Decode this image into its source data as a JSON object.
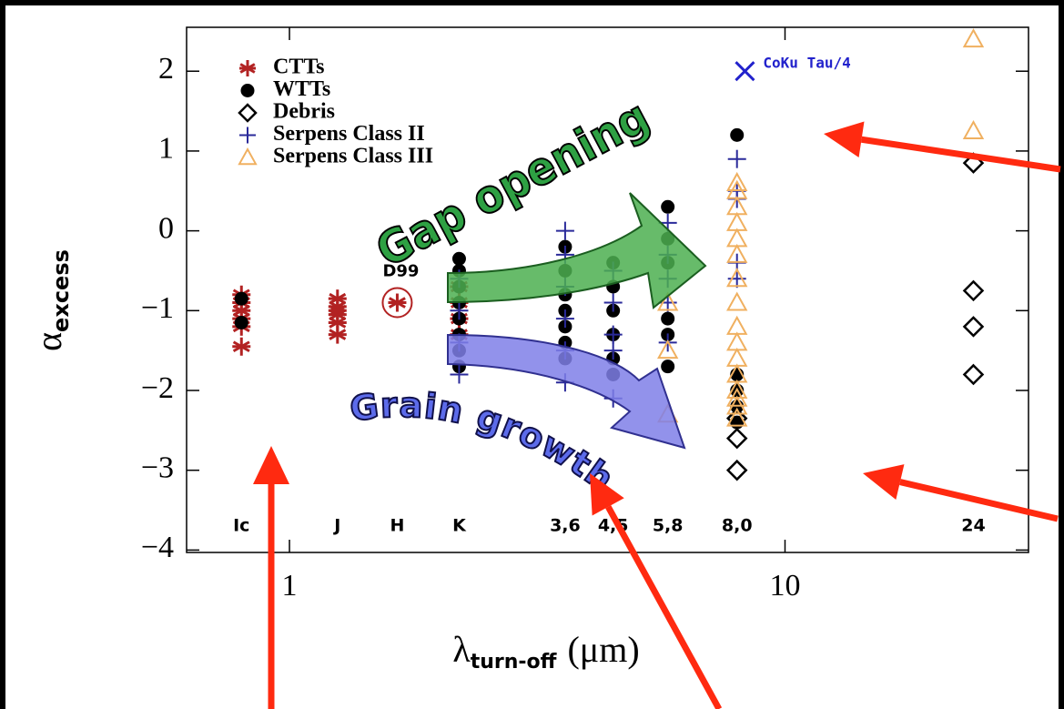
{
  "chart_data": {
    "type": "scatter",
    "xlabel": {
      "symbol": "λ",
      "subscript": "turn-off",
      "unit": "(μm)"
    },
    "ylabel": {
      "symbol": "α",
      "subscript": "excess"
    },
    "xscale": "log",
    "grid": false,
    "legend": "upper left",
    "xlim": [
      0.62,
      31
    ],
    "xticks": [
      1,
      10
    ],
    "ylim": [
      -4.03,
      2.55
    ],
    "yticks": [
      {
        "value": -4,
        "label": "−4"
      },
      {
        "value": -3,
        "label": "−3"
      },
      {
        "value": -2,
        "label": "−2"
      },
      {
        "value": -1,
        "label": "−1"
      },
      0,
      1,
      2
    ],
    "series": [
      {
        "name": "CTTs",
        "color": "#b22222",
        "marker": "asterisk",
        "x": [
          0.8,
          0.8,
          0.8,
          0.8,
          0.8,
          0.8,
          1.25,
          1.25,
          1.25,
          1.25,
          1.25,
          1.25,
          1.65,
          2.2,
          2.2,
          2.2,
          2.2
        ],
        "values": [
          -0.8,
          -0.9,
          -1.0,
          -1.1,
          -1.2,
          -1.45,
          -0.85,
          -0.95,
          -1.0,
          -1.05,
          -1.15,
          -1.3,
          -0.9,
          -0.7,
          -0.9,
          -1.1,
          -1.3
        ]
      },
      {
        "name": "WTTs",
        "color": "#000000",
        "marker": "dot",
        "x": [
          0.8,
          0.8,
          2.2,
          2.2,
          2.2,
          2.2,
          2.2,
          2.2,
          2.2,
          2.2,
          3.6,
          3.6,
          3.6,
          3.6,
          3.6,
          3.6,
          3.6,
          4.5,
          4.5,
          4.5,
          4.5,
          4.5,
          4.5,
          5.8,
          5.8,
          5.8,
          5.8,
          5.8,
          5.8,
          8.0,
          8.0,
          8.0,
          8.0,
          8.0
        ],
        "values": [
          -0.85,
          -1.15,
          -0.35,
          -0.5,
          -0.7,
          -0.9,
          -1.1,
          -1.3,
          -1.5,
          -1.7,
          -0.2,
          -0.5,
          -0.8,
          -1.0,
          -1.2,
          -1.4,
          -1.6,
          -0.4,
          -0.7,
          -1.0,
          -1.3,
          -1.6,
          -1.8,
          0.3,
          -0.1,
          -0.4,
          -1.1,
          -1.3,
          -1.7,
          1.2,
          -1.8,
          -2.0,
          -2.2,
          -2.4
        ]
      },
      {
        "name": "Debris",
        "color": "#000000",
        "marker": "diamond",
        "x": [
          8.0,
          8.0,
          8.0,
          24,
          24,
          24,
          24
        ],
        "values": [
          -2.35,
          -2.6,
          -3.0,
          0.85,
          -0.75,
          -1.2,
          -1.8
        ]
      },
      {
        "name": "Serpens Class II",
        "color": "#2a2a9a",
        "marker": "plus",
        "x": [
          2.2,
          2.2,
          2.2,
          2.2,
          3.6,
          3.6,
          3.6,
          3.6,
          3.6,
          3.6,
          4.5,
          4.5,
          4.5,
          4.5,
          4.5,
          5.8,
          5.8,
          5.8,
          5.8,
          5.8,
          8.0,
          8.0,
          8.0,
          8.0,
          8.0
        ],
        "values": [
          -0.6,
          -1.0,
          -1.4,
          -1.8,
          0.0,
          -0.3,
          -0.7,
          -1.1,
          -1.5,
          -1.9,
          -0.5,
          -0.9,
          -1.3,
          -1.5,
          -2.1,
          0.1,
          -0.3,
          -0.6,
          -0.9,
          -1.4,
          0.9,
          0.5,
          0.4,
          -0.4,
          -0.6
        ]
      },
      {
        "name": "Serpens Class III",
        "color": "#f0b060",
        "marker": "triangle",
        "x": [
          5.8,
          5.8,
          5.8,
          8.0,
          8.0,
          8.0,
          8.0,
          8.0,
          8.0,
          8.0,
          8.0,
          8.0,
          8.0,
          8.0,
          8.0,
          8.0,
          8.0,
          8.0,
          8.0,
          24,
          24
        ],
        "values": [
          -0.9,
          -1.5,
          -2.3,
          0.6,
          0.5,
          0.3,
          0.1,
          -0.1,
          -0.3,
          -0.6,
          -0.9,
          -1.2,
          -1.4,
          -1.6,
          -1.8,
          -2.0,
          -2.1,
          -2.2,
          -2.35,
          2.4,
          1.25
        ]
      }
    ],
    "highlight": {
      "name": "CoKu Tau/4",
      "color": "#2222cc",
      "marker": "x",
      "x": 8.3,
      "y": 2.0
    },
    "point_label": {
      "text": "D99",
      "x": 1.65,
      "y": -0.9
    },
    "band_labels": [
      {
        "label": "Ic",
        "x": 0.8
      },
      {
        "label": "J",
        "x": 1.25
      },
      {
        "label": "H",
        "x": 1.65
      },
      {
        "label": "K",
        "x": 2.2
      },
      {
        "label": "3,6",
        "x": 3.6
      },
      {
        "label": "4,5",
        "x": 4.5
      },
      {
        "label": "5,8",
        "x": 5.8
      },
      {
        "label": "8,0",
        "x": 8.0
      },
      {
        "label": "24",
        "x": 24
      }
    ]
  },
  "overlay": {
    "gap_label": "Gap opening",
    "grain_label": "Grain growth"
  }
}
